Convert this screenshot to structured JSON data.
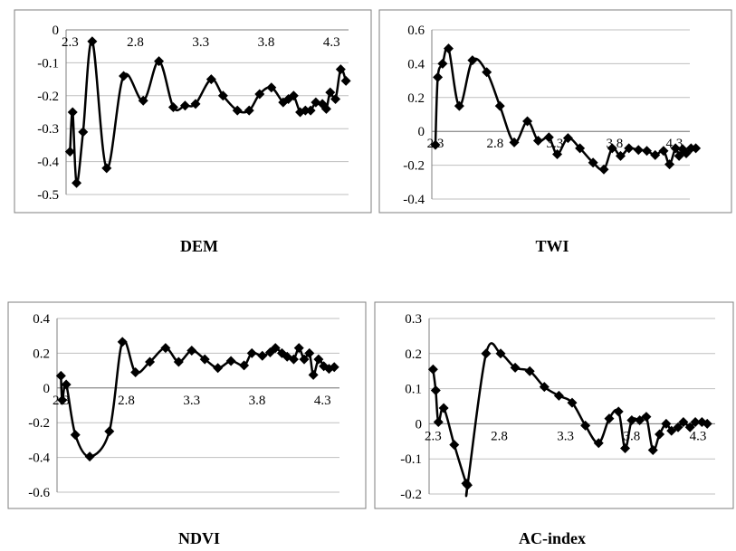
{
  "captions": [
    "DEM",
    "TWI",
    "NDVI",
    "AC-index"
  ],
  "style": {
    "line_color": "#000000",
    "frame_color": "#7f7f7f",
    "grid_color": "#bfbfbf"
  },
  "chart_data": [
    {
      "type": "line",
      "title": "",
      "xlabel": "",
      "ylabel": "",
      "x_tick_labels": [
        "2.3",
        "2.8",
        "3.3",
        "3.8",
        "4.3"
      ],
      "x_ticks": [
        2.3,
        2.8,
        3.3,
        3.8,
        4.3
      ],
      "y_tick_labels": [
        "0",
        "-0.1",
        "-0.2",
        "-0.3",
        "-0.4",
        "-0.5"
      ],
      "y_ticks": [
        0,
        -0.1,
        -0.2,
        -0.3,
        -0.4,
        -0.5
      ],
      "xlim": [
        2.27,
        4.43
      ],
      "ylim": [
        -0.5,
        0
      ],
      "grid": true,
      "markers": "diamond",
      "series": [
        {
          "x": [
            2.3,
            2.32,
            2.35,
            2.4,
            2.47,
            2.58,
            2.71,
            2.86,
            2.98,
            3.09,
            3.18,
            3.26,
            3.38,
            3.47,
            3.58,
            3.67,
            3.75,
            3.84,
            3.93,
            3.97,
            4.01,
            4.06,
            4.1,
            4.14,
            4.18,
            4.23,
            4.26,
            4.29,
            4.33,
            4.37,
            4.41
          ],
          "y": [
            -0.37,
            -0.25,
            -0.465,
            -0.31,
            -0.035,
            -0.42,
            -0.14,
            -0.215,
            -0.095,
            -0.235,
            -0.23,
            -0.225,
            -0.15,
            -0.2,
            -0.245,
            -0.245,
            -0.195,
            -0.175,
            -0.22,
            -0.21,
            -0.2,
            -0.25,
            -0.245,
            -0.245,
            -0.22,
            -0.225,
            -0.24,
            -0.19,
            -0.21,
            -0.12,
            -0.155
          ]
        }
      ]
    },
    {
      "type": "line",
      "title": "",
      "xlabel": "",
      "ylabel": "",
      "x_tick_labels": [
        "2.3",
        "2.8",
        "3.3",
        "3.8",
        "4.3"
      ],
      "x_ticks": [
        2.3,
        2.8,
        3.3,
        3.8,
        4.3
      ],
      "y_tick_labels": [
        "0.6",
        "0.4",
        "0.2",
        "0",
        "-0.2",
        "-0.4"
      ],
      "y_ticks": [
        0.6,
        0.4,
        0.2,
        0,
        -0.2,
        -0.4
      ],
      "xlim": [
        2.27,
        4.43
      ],
      "ylim": [
        -0.4,
        0.6
      ],
      "grid": true,
      "markers": "diamond",
      "series": [
        {
          "x": [
            2.3,
            2.32,
            2.36,
            2.41,
            2.5,
            2.61,
            2.73,
            2.84,
            2.96,
            3.07,
            3.16,
            3.25,
            3.32,
            3.41,
            3.51,
            3.62,
            3.71,
            3.78,
            3.85,
            3.92,
            4.0,
            4.07,
            4.14,
            4.21,
            4.26,
            4.31,
            4.34,
            4.37,
            4.4,
            4.44,
            4.48
          ],
          "y": [
            -0.08,
            0.32,
            0.4,
            0.49,
            0.15,
            0.42,
            0.35,
            0.15,
            -0.065,
            0.06,
            -0.055,
            -0.035,
            -0.135,
            -0.04,
            -0.1,
            -0.185,
            -0.225,
            -0.1,
            -0.145,
            -0.1,
            -0.11,
            -0.115,
            -0.14,
            -0.115,
            -0.195,
            -0.1,
            -0.145,
            -0.105,
            -0.13,
            -0.1,
            -0.1
          ]
        }
      ]
    },
    {
      "type": "line",
      "title": "",
      "xlabel": "",
      "ylabel": "",
      "x_tick_labels": [
        "2.3",
        "2.8",
        "3.3",
        "3.8",
        "4.3"
      ],
      "x_ticks": [
        2.3,
        2.8,
        3.3,
        3.8,
        4.3
      ],
      "y_tick_labels": [
        "0.4",
        "0.2",
        "0",
        "-0.2",
        "-0.4",
        "-0.6"
      ],
      "y_ticks": [
        0.4,
        0.2,
        0,
        -0.2,
        -0.4,
        -0.6
      ],
      "xlim": [
        2.27,
        4.43
      ],
      "ylim": [
        -0.6,
        0.4
      ],
      "grid": true,
      "markers": "diamond",
      "series": [
        {
          "x": [
            2.3,
            2.31,
            2.34,
            2.41,
            2.52,
            2.67,
            2.77,
            2.87,
            2.98,
            3.1,
            3.2,
            3.3,
            3.4,
            3.5,
            3.6,
            3.7,
            3.76,
            3.84,
            3.9,
            3.94,
            3.99,
            4.03,
            4.08,
            4.12,
            4.16,
            4.2,
            4.23,
            4.27,
            4.31,
            4.35,
            4.39
          ],
          "y": [
            0.07,
            -0.07,
            0.02,
            -0.27,
            -0.395,
            -0.25,
            0.265,
            0.09,
            0.15,
            0.23,
            0.15,
            0.215,
            0.165,
            0.115,
            0.155,
            0.13,
            0.2,
            0.185,
            0.205,
            0.23,
            0.2,
            0.18,
            0.165,
            0.23,
            0.165,
            0.2,
            0.075,
            0.165,
            0.125,
            0.11,
            0.12
          ]
        }
      ]
    },
    {
      "type": "line",
      "title": "",
      "xlabel": "",
      "ylabel": "",
      "x_tick_labels": [
        "2.3",
        "2.8",
        "3.3",
        "3.8",
        "4.3"
      ],
      "x_ticks": [
        2.3,
        2.8,
        3.3,
        3.8,
        4.3
      ],
      "y_tick_labels": [
        "0.3",
        "0.2",
        "0.1",
        "0",
        "-0.1",
        "-0.2"
      ],
      "y_ticks": [
        0.3,
        0.2,
        0.1,
        0,
        -0.1,
        -0.2
      ],
      "xlim": [
        2.27,
        4.43
      ],
      "ylim": [
        -0.2,
        0.3
      ],
      "grid": true,
      "markers": "diamond",
      "series": [
        {
          "x": [
            2.3,
            2.32,
            2.34,
            2.38,
            2.46,
            2.55,
            2.56,
            2.7,
            2.81,
            2.92,
            3.03,
            3.14,
            3.25,
            3.35,
            3.45,
            3.55,
            3.63,
            3.7,
            3.75,
            3.8,
            3.86,
            3.91,
            3.96,
            4.01,
            4.06,
            4.1,
            4.15,
            4.19,
            4.24,
            4.28,
            4.33,
            4.37
          ],
          "y": [
            0.155,
            0.095,
            0.005,
            0.045,
            -0.06,
            -0.17,
            -0.175,
            0.2,
            0.2,
            0.16,
            0.15,
            0.105,
            0.08,
            0.06,
            -0.005,
            -0.055,
            0.015,
            0.035,
            -0.07,
            0.01,
            0.01,
            0.02,
            -0.075,
            -0.03,
            0.0,
            -0.02,
            -0.01,
            0.005,
            -0.01,
            0.005,
            0.005,
            0.0
          ]
        }
      ]
    }
  ]
}
